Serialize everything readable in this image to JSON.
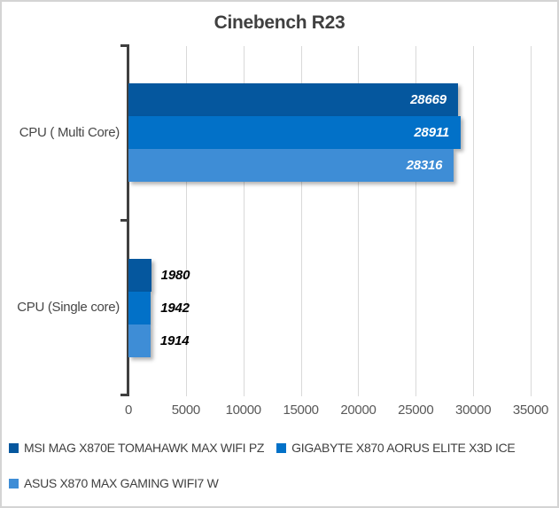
{
  "chart_data": {
    "type": "bar",
    "orientation": "horizontal",
    "title": "Cinebench R23",
    "categories": [
      "CPU ( Multi Core)",
      "CPU (Single core)"
    ],
    "series": [
      {
        "name": "MSI MAG X870E TOMAHAWK MAX WIFI PZ",
        "color": "#05579E",
        "values": [
          28669,
          1980
        ]
      },
      {
        "name": "GIGABYTE X870 AORUS ELITE X3D ICE",
        "color": "#0271C8",
        "values": [
          28911,
          1942
        ]
      },
      {
        "name": "ASUS X870 MAX GAMING WIFI7 W",
        "color": "#3E8DD6",
        "values": [
          28316,
          1914
        ]
      }
    ],
    "xlim": [
      0,
      35000
    ],
    "xticks": [
      0,
      5000,
      10000,
      15000,
      20000,
      25000,
      30000,
      35000
    ],
    "grid": "vertical-only",
    "legend_position": "bottom-left",
    "data_label_style": "bold-italic",
    "styles": {
      "axis_color": "#404040",
      "gridline_color": "#D9D9D9",
      "tick_label_color": "#595959",
      "title_color": "#404040",
      "category_label_color": "#474747",
      "label_inside_color": "#FFFFFF",
      "label_outside_color": "#000000",
      "border_color": "#D4D4D4",
      "background": "#FFFFFF"
    }
  }
}
